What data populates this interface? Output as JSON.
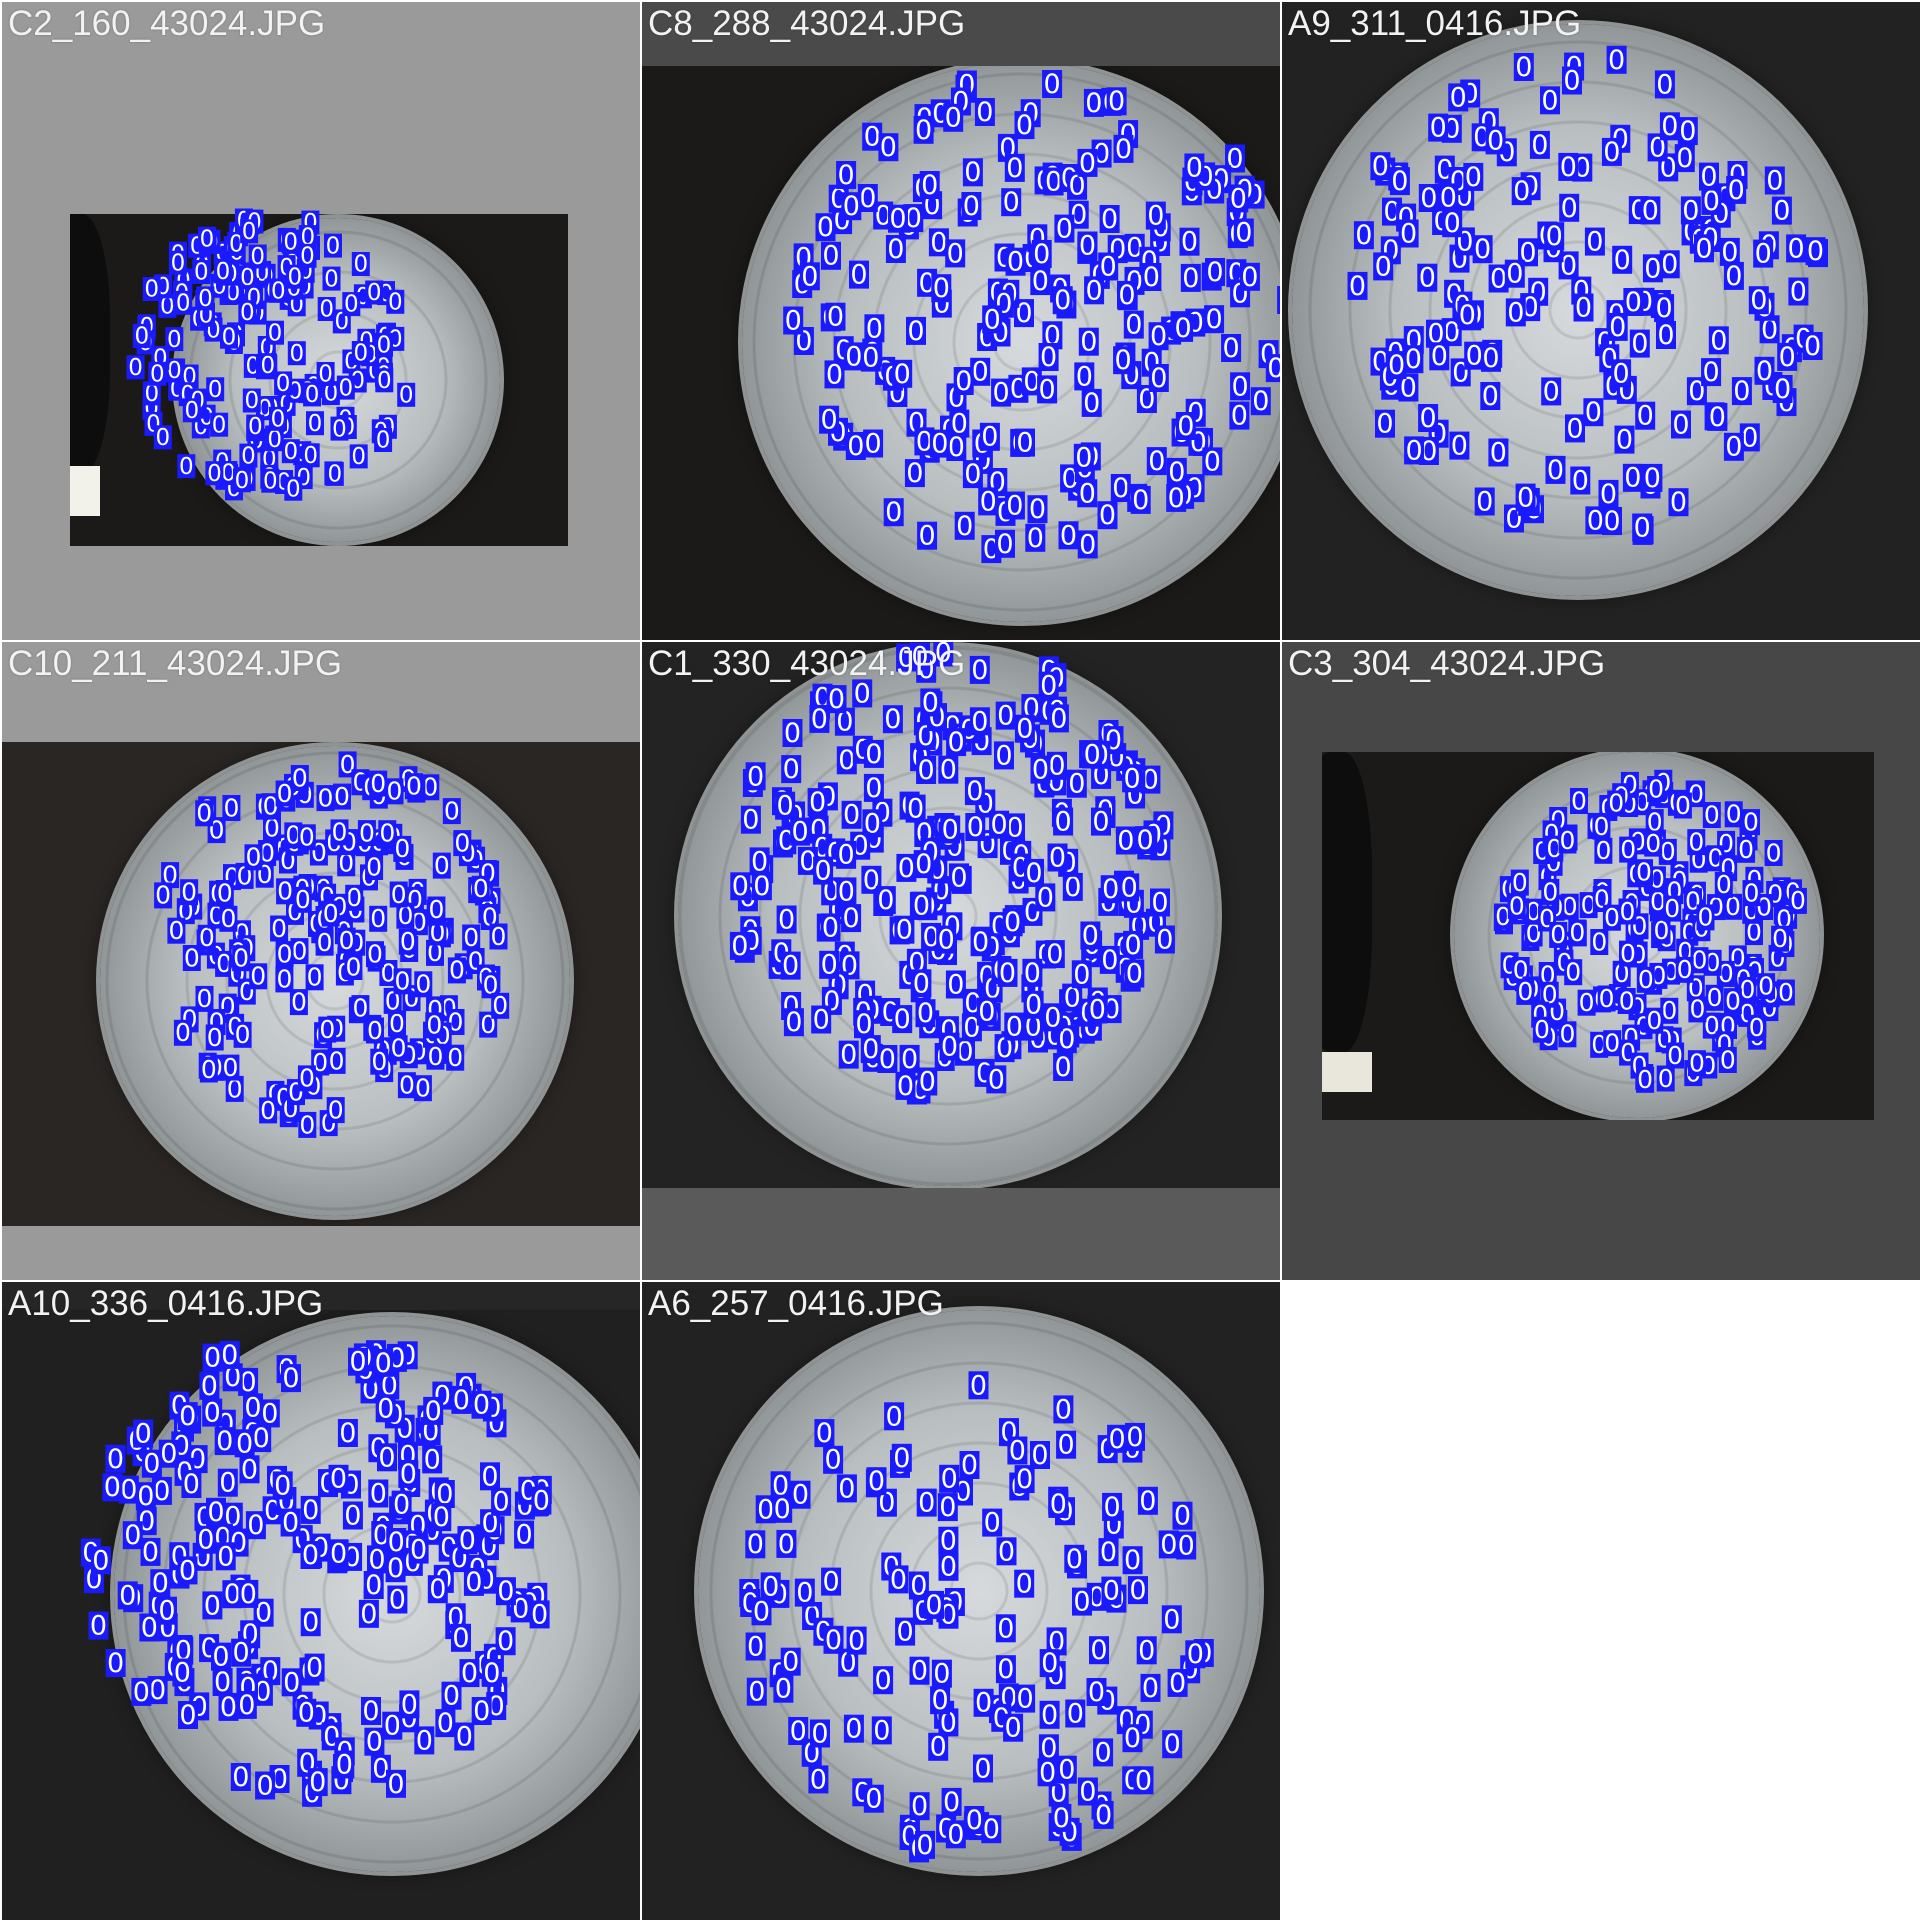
{
  "mosaic": {
    "background_color": "#ffffff",
    "box_color": "#1a1aff",
    "box_text_color": "#ffffff",
    "detection_label": "0",
    "tiles": [
      {
        "label": "C2_160_43024.JPG",
        "background": "#9a9a9a"
      },
      {
        "label": "C8_288_43024.JPG",
        "background": "#4a4a4a"
      },
      {
        "label": "A9_311_0416.JPG",
        "background": "#262626"
      },
      {
        "label": "C10_211_43024.JPG",
        "background": "#9a9a9a"
      },
      {
        "label": "C1_330_43024.JPG",
        "background": "#5a5a5a"
      },
      {
        "label": "C3_304_43024.JPG",
        "background": "#474747"
      },
      {
        "label": "A10_336_0416.JPG",
        "background": "#262626"
      },
      {
        "label": "A6_257_0416.JPG",
        "background": "#262626"
      }
    ]
  }
}
